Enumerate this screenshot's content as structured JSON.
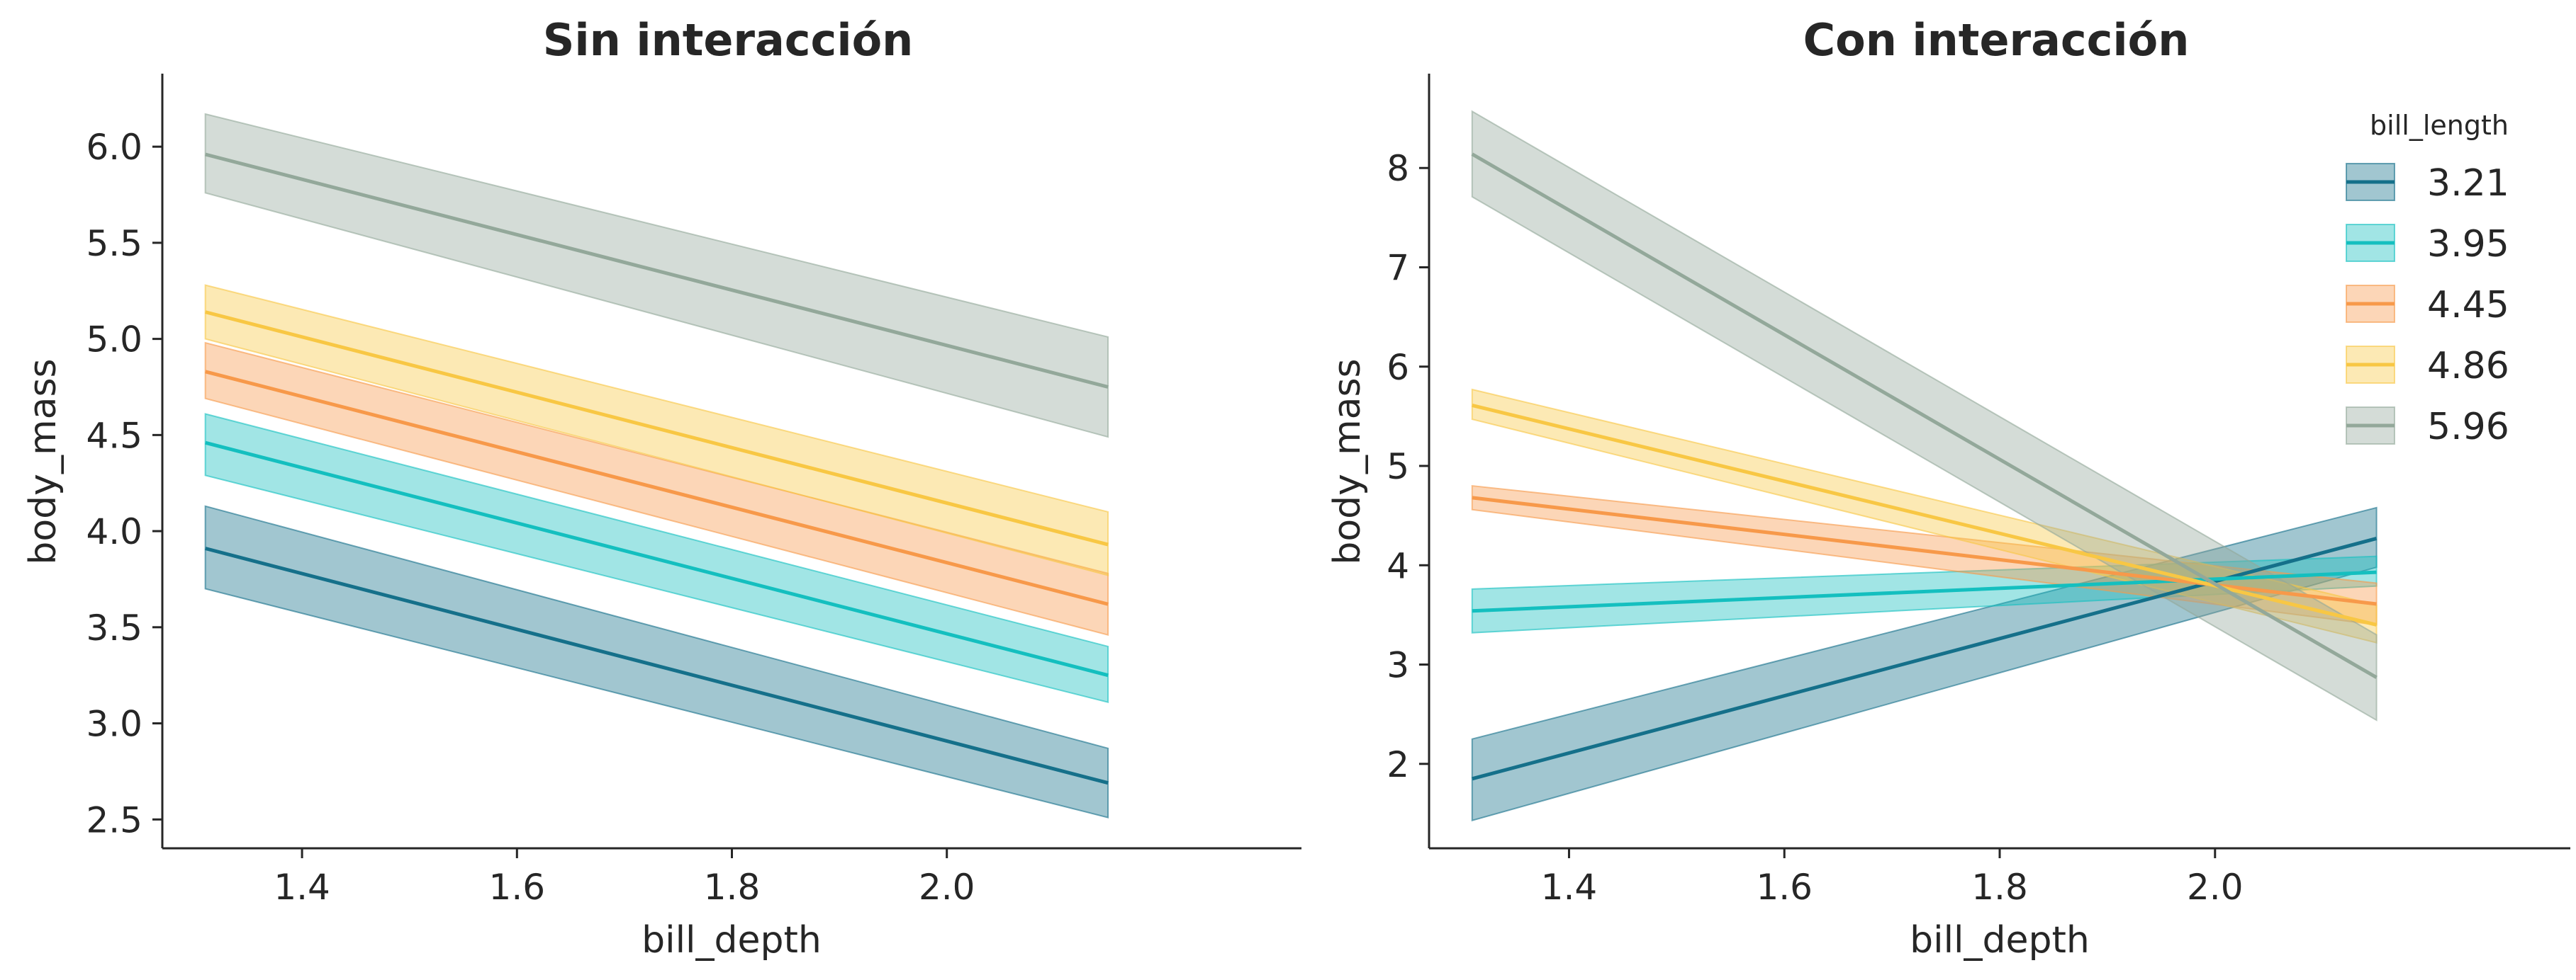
{
  "chart_data": [
    {
      "type": "line",
      "title": "Sin interacción",
      "xlabel": "bill_depth",
      "ylabel": "body_mass",
      "xlim": [
        1.27,
        2.33
      ],
      "ylim": [
        2.35,
        6.38
      ],
      "xticks": [
        "1.4",
        "1.6",
        "1.8",
        "2.0"
      ],
      "yticks": [
        "2.5",
        "3.0",
        "3.5",
        "4.0",
        "4.5",
        "5.0",
        "5.5",
        "6.0"
      ],
      "x": [
        1.31,
        2.15
      ],
      "series": [
        {
          "name": "3.21",
          "color": "#15708a",
          "y": [
            3.91,
            2.69
          ],
          "lower": [
            3.7,
            2.51
          ],
          "upper": [
            4.13,
            2.87
          ]
        },
        {
          "name": "3.95",
          "color": "#14bfbf",
          "y": [
            4.46,
            3.25
          ],
          "lower": [
            4.29,
            3.11
          ],
          "upper": [
            4.61,
            3.4
          ]
        },
        {
          "name": "4.45",
          "color": "#f7994a",
          "y": [
            4.83,
            3.62
          ],
          "lower": [
            4.69,
            3.46
          ],
          "upper": [
            4.98,
            3.78
          ]
        },
        {
          "name": "4.86",
          "color": "#f8c744",
          "y": [
            5.14,
            3.93
          ],
          "lower": [
            5.0,
            3.77
          ],
          "upper": [
            5.28,
            4.1
          ]
        },
        {
          "name": "5.96",
          "color": "#93a89a",
          "y": [
            5.96,
            4.75
          ],
          "lower": [
            5.76,
            4.49
          ],
          "upper": [
            6.17,
            5.01
          ]
        }
      ]
    },
    {
      "type": "line",
      "title": "Con interacción",
      "xlabel": "bill_depth",
      "ylabel": "body_mass",
      "xlim": [
        1.27,
        2.33
      ],
      "ylim": [
        1.15,
        8.95
      ],
      "xticks": [
        "1.4",
        "1.6",
        "1.8",
        "2.0"
      ],
      "yticks": [
        "2",
        "3",
        "4",
        "5",
        "6",
        "7",
        "8"
      ],
      "legend": {
        "title": "bill_length",
        "position": "top-right"
      },
      "x": [
        1.31,
        2.15
      ],
      "series": [
        {
          "name": "3.21",
          "color": "#15708a",
          "y": [
            1.85,
            4.27
          ],
          "lower": [
            1.43,
            3.98
          ],
          "upper": [
            2.25,
            4.58
          ]
        },
        {
          "name": "3.95",
          "color": "#14bfbf",
          "y": [
            3.54,
            3.93
          ],
          "lower": [
            3.32,
            3.79
          ],
          "upper": [
            3.76,
            4.09
          ]
        },
        {
          "name": "4.45",
          "color": "#f7994a",
          "y": [
            4.68,
            3.61
          ],
          "lower": [
            4.56,
            3.4
          ],
          "upper": [
            4.8,
            3.82
          ]
        },
        {
          "name": "4.86",
          "color": "#f8c744",
          "y": [
            5.61,
            3.4
          ],
          "lower": [
            5.47,
            3.22
          ],
          "upper": [
            5.77,
            3.6
          ]
        },
        {
          "name": "5.96",
          "color": "#93a89a",
          "y": [
            8.14,
            2.87
          ],
          "lower": [
            7.71,
            2.44
          ],
          "upper": [
            8.57,
            3.3
          ]
        }
      ]
    }
  ]
}
